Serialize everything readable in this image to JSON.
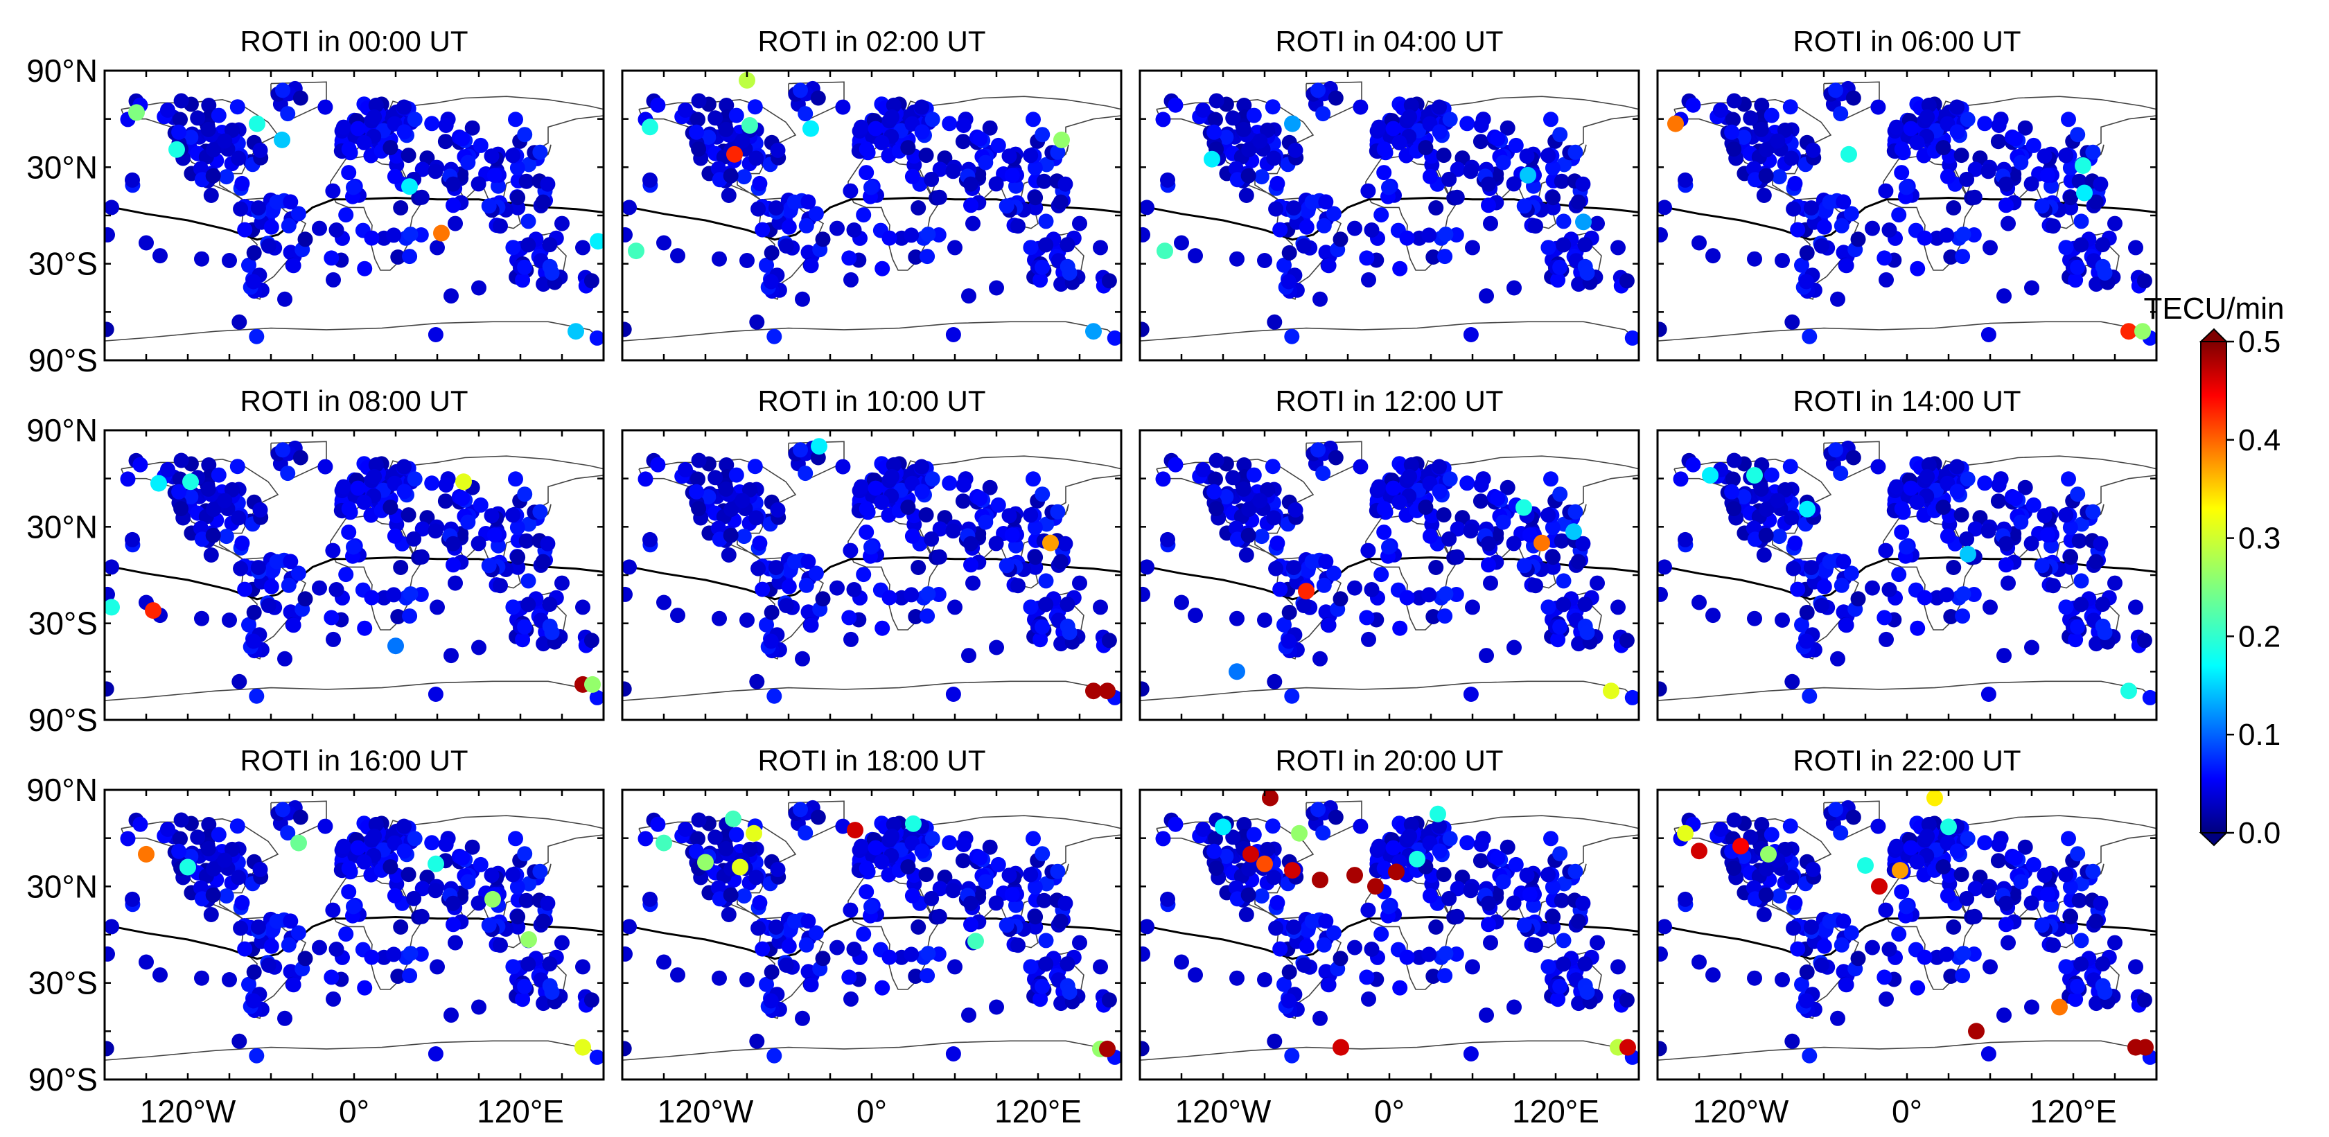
{
  "chart_data": {
    "type": "scatter",
    "panels": [
      {
        "title": "ROTI in 00:00 UT"
      },
      {
        "title": "ROTI in 02:00 UT"
      },
      {
        "title": "ROTI in 04:00 UT"
      },
      {
        "title": "ROTI in 06:00 UT"
      },
      {
        "title": "ROTI in 08:00 UT"
      },
      {
        "title": "ROTI in 10:00 UT"
      },
      {
        "title": "ROTI in 12:00 UT"
      },
      {
        "title": "ROTI in 14:00 UT"
      },
      {
        "title": "ROTI in 16:00 UT"
      },
      {
        "title": "ROTI in 18:00 UT"
      },
      {
        "title": "ROTI in 20:00 UT"
      },
      {
        "title": "ROTI in 22:00 UT"
      }
    ],
    "x_ticks": [
      "120°W",
      "0°",
      "120°E"
    ],
    "x_tick_values": [
      -120,
      0,
      120
    ],
    "y_ticks": [
      "90°N",
      "30°N",
      "30°S",
      "90°S"
    ],
    "y_tick_values": [
      90,
      30,
      -30,
      -90
    ],
    "xlim": [
      -180,
      180
    ],
    "ylim": [
      -90,
      90
    ],
    "colorbar": {
      "label": "TECU/min",
      "ticks": [
        "0.0",
        "0.1",
        "0.2",
        "0.3",
        "0.4",
        "0.5"
      ],
      "tick_values": [
        0,
        0.1,
        0.2,
        0.3,
        0.4,
        0.5
      ],
      "range": [
        0,
        0.5
      ],
      "colormap": "jet",
      "extend": "both"
    },
    "dip_equator": [
      [
        -180,
        6
      ],
      [
        -150,
        1
      ],
      [
        -120,
        -3
      ],
      [
        -90,
        -9
      ],
      [
        -70,
        -15
      ],
      [
        -55,
        -12
      ],
      [
        -40,
        -2
      ],
      [
        -30,
        5
      ],
      [
        -15,
        10
      ],
      [
        0,
        10
      ],
      [
        30,
        11
      ],
      [
        60,
        10
      ],
      [
        90,
        10
      ],
      [
        110,
        8
      ],
      [
        140,
        5
      ],
      [
        160,
        4
      ],
      [
        180,
        2
      ]
    ],
    "background_roti": 0.04,
    "highlight_stations": [
      [
        {
          "lon": -157,
          "lat": 64,
          "v": 0.25
        },
        {
          "lon": -128,
          "lat": 41,
          "v": 0.2
        },
        {
          "lon": -70,
          "lat": 57,
          "v": 0.2
        },
        {
          "lon": -52,
          "lat": 47,
          "v": 0.16
        },
        {
          "lon": 40,
          "lat": 18,
          "v": 0.18
        },
        {
          "lon": 63,
          "lat": -11,
          "v": 0.38
        },
        {
          "lon": 176,
          "lat": -16,
          "v": 0.18
        },
        {
          "lon": 160,
          "lat": -72,
          "v": 0.16
        }
      ],
      [
        {
          "lon": -90,
          "lat": 84,
          "v": 0.28
        },
        {
          "lon": -160,
          "lat": 55,
          "v": 0.2
        },
        {
          "lon": -99,
          "lat": 38,
          "v": 0.42
        },
        {
          "lon": -88,
          "lat": 56,
          "v": 0.22
        },
        {
          "lon": -44,
          "lat": 54,
          "v": 0.18
        },
        {
          "lon": 137,
          "lat": 47,
          "v": 0.26
        },
        {
          "lon": -170,
          "lat": -22,
          "v": 0.22
        },
        {
          "lon": 160,
          "lat": -72,
          "v": 0.14
        }
      ],
      [
        {
          "lon": -162,
          "lat": -22,
          "v": 0.22
        },
        {
          "lon": -128,
          "lat": 35,
          "v": 0.18
        },
        {
          "lon": -70,
          "lat": 57,
          "v": 0.14
        },
        {
          "lon": 100,
          "lat": 25,
          "v": 0.16
        },
        {
          "lon": 140,
          "lat": -4,
          "v": 0.14
        }
      ],
      [
        {
          "lon": -167,
          "lat": 57,
          "v": 0.38
        },
        {
          "lon": -42,
          "lat": 38,
          "v": 0.2
        },
        {
          "lon": 128,
          "lat": 14,
          "v": 0.18
        },
        {
          "lon": 127,
          "lat": 31,
          "v": 0.2
        },
        {
          "lon": 160,
          "lat": -72,
          "v": 0.42
        },
        {
          "lon": 170,
          "lat": -72,
          "v": 0.26
        }
      ],
      [
        {
          "lon": -141,
          "lat": 57,
          "v": 0.18
        },
        {
          "lon": -118,
          "lat": 58,
          "v": 0.2
        },
        {
          "lon": 79,
          "lat": 58,
          "v": 0.3
        },
        {
          "lon": -175,
          "lat": -20,
          "v": 0.2
        },
        {
          "lon": -145,
          "lat": -22,
          "v": 0.42
        },
        {
          "lon": 30,
          "lat": -44,
          "v": 0.12
        },
        {
          "lon": 165,
          "lat": -68,
          "v": 0.48
        },
        {
          "lon": 172,
          "lat": -68,
          "v": 0.26
        }
      ],
      [
        {
          "lon": -38,
          "lat": 80,
          "v": 0.18
        },
        {
          "lon": 129,
          "lat": 20,
          "v": 0.36
        },
        {
          "lon": 160,
          "lat": -72,
          "v": 0.48
        },
        {
          "lon": 170,
          "lat": -72,
          "v": 0.48
        }
      ],
      [
        {
          "lon": 110,
          "lat": 20,
          "v": 0.38
        },
        {
          "lon": -60,
          "lat": -10,
          "v": 0.42
        },
        {
          "lon": 97,
          "lat": 42,
          "v": 0.2
        },
        {
          "lon": 133,
          "lat": 27,
          "v": 0.16
        },
        {
          "lon": 160,
          "lat": -72,
          "v": 0.3
        },
        {
          "lon": -110,
          "lat": -60,
          "v": 0.12
        }
      ],
      [
        {
          "lon": -142,
          "lat": 62,
          "v": 0.18
        },
        {
          "lon": -110,
          "lat": 62,
          "v": 0.2
        },
        {
          "lon": -72,
          "lat": 41,
          "v": 0.18
        },
        {
          "lon": 44,
          "lat": 13,
          "v": 0.16
        },
        {
          "lon": 160,
          "lat": -72,
          "v": 0.2
        }
      ],
      [
        {
          "lon": -150,
          "lat": 50,
          "v": 0.38
        },
        {
          "lon": -120,
          "lat": 42,
          "v": 0.2
        },
        {
          "lon": -40,
          "lat": 57,
          "v": 0.24
        },
        {
          "lon": 59,
          "lat": 44,
          "v": 0.2
        },
        {
          "lon": 100,
          "lat": 22,
          "v": 0.26
        },
        {
          "lon": 126,
          "lat": -3,
          "v": 0.26
        },
        {
          "lon": 165,
          "lat": -70,
          "v": 0.3
        }
      ],
      [
        {
          "lon": -150,
          "lat": 57,
          "v": 0.22
        },
        {
          "lon": -100,
          "lat": 72,
          "v": 0.22
        },
        {
          "lon": -85,
          "lat": 63,
          "v": 0.3
        },
        {
          "lon": -12,
          "lat": 65,
          "v": 0.46
        },
        {
          "lon": 30,
          "lat": 69,
          "v": 0.2
        },
        {
          "lon": -120,
          "lat": 45,
          "v": 0.26
        },
        {
          "lon": -95,
          "lat": 42,
          "v": 0.3
        },
        {
          "lon": 75,
          "lat": -4,
          "v": 0.22
        },
        {
          "lon": 165,
          "lat": -71,
          "v": 0.26
        },
        {
          "lon": 170,
          "lat": -71,
          "v": 0.48
        }
      ],
      [
        {
          "lon": -120,
          "lat": 67,
          "v": 0.18
        },
        {
          "lon": -86,
          "lat": 85,
          "v": 0.48
        },
        {
          "lon": -65,
          "lat": 63,
          "v": 0.26
        },
        {
          "lon": -100,
          "lat": 50,
          "v": 0.46
        },
        {
          "lon": -90,
          "lat": 44,
          "v": 0.4
        },
        {
          "lon": -70,
          "lat": 40,
          "v": 0.46
        },
        {
          "lon": -50,
          "lat": 34,
          "v": 0.48
        },
        {
          "lon": -25,
          "lat": 37,
          "v": 0.48
        },
        {
          "lon": -10,
          "lat": 30,
          "v": 0.48
        },
        {
          "lon": 5,
          "lat": 39,
          "v": 0.48
        },
        {
          "lon": 20,
          "lat": 47,
          "v": 0.2
        },
        {
          "lon": 35,
          "lat": 75,
          "v": 0.2
        },
        {
          "lon": -35,
          "lat": -70,
          "v": 0.46
        },
        {
          "lon": 165,
          "lat": -70,
          "v": 0.28
        },
        {
          "lon": 172,
          "lat": -70,
          "v": 0.46
        }
      ],
      [
        {
          "lon": -160,
          "lat": 63,
          "v": 0.3
        },
        {
          "lon": -150,
          "lat": 52,
          "v": 0.46
        },
        {
          "lon": -120,
          "lat": 55,
          "v": 0.44
        },
        {
          "lon": -100,
          "lat": 50,
          "v": 0.26
        },
        {
          "lon": 20,
          "lat": 85,
          "v": 0.32
        },
        {
          "lon": 30,
          "lat": 67,
          "v": 0.2
        },
        {
          "lon": -30,
          "lat": 43,
          "v": 0.2
        },
        {
          "lon": -5,
          "lat": 40,
          "v": 0.36
        },
        {
          "lon": -20,
          "lat": 30,
          "v": 0.46
        },
        {
          "lon": 50,
          "lat": -60,
          "v": 0.48
        },
        {
          "lon": 110,
          "lat": -45,
          "v": 0.38
        },
        {
          "lon": 165,
          "lat": -70,
          "v": 0.48
        },
        {
          "lon": 172,
          "lat": -70,
          "v": 0.48
        }
      ]
    ]
  }
}
